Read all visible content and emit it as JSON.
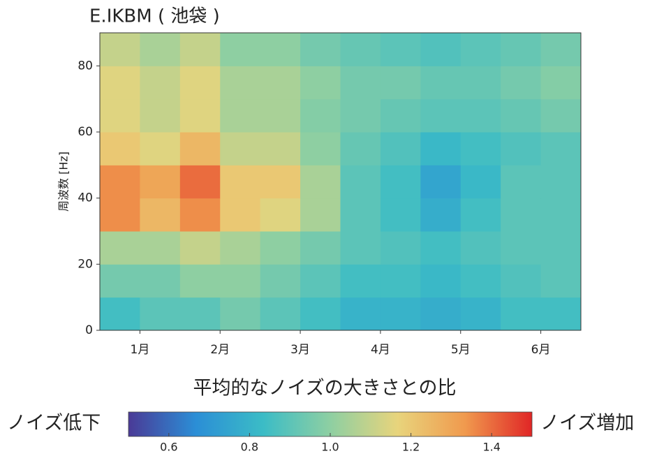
{
  "chart_data": {
    "type": "heatmap",
    "title": "E.IKBM ( 池袋 )",
    "y_label": "周波数 [Hz]",
    "xlim": [
      0,
      6
    ],
    "xticks": [
      {
        "value": 0.5,
        "label": "1月"
      },
      {
        "value": 1.5,
        "label": "2月"
      },
      {
        "value": 2.5,
        "label": "3月"
      },
      {
        "value": 3.5,
        "label": "4月"
      },
      {
        "value": 4.5,
        "label": "5月"
      },
      {
        "value": 5.5,
        "label": "6月"
      }
    ],
    "ylim": [
      0,
      90
    ],
    "yticks": [
      0,
      20,
      40,
      60,
      80
    ],
    "x_bins": [
      0,
      0.5,
      1,
      1.5,
      2,
      2.5,
      3,
      3.5,
      4,
      4.5,
      5,
      5.5,
      6
    ],
    "y_bins": [
      0,
      10,
      20,
      30,
      40,
      50,
      60,
      70,
      80,
      90
    ],
    "values": [
      [
        0.85,
        0.9,
        0.9,
        0.95,
        0.9,
        0.85,
        0.8,
        0.8,
        0.78,
        0.8,
        0.85,
        0.85
      ],
      [
        0.95,
        0.95,
        1.0,
        1.0,
        0.95,
        0.9,
        0.85,
        0.85,
        0.82,
        0.85,
        0.88,
        0.9
      ],
      [
        1.05,
        1.05,
        1.1,
        1.05,
        1.0,
        0.95,
        0.9,
        0.88,
        0.85,
        0.88,
        0.9,
        0.9
      ],
      [
        1.35,
        1.25,
        1.35,
        1.2,
        1.15,
        1.05,
        0.9,
        0.85,
        0.78,
        0.85,
        0.9,
        0.9
      ],
      [
        1.35,
        1.3,
        1.4,
        1.2,
        1.2,
        1.05,
        0.9,
        0.85,
        0.75,
        0.82,
        0.9,
        0.9
      ],
      [
        1.2,
        1.15,
        1.25,
        1.1,
        1.1,
        1.0,
        0.92,
        0.88,
        0.82,
        0.85,
        0.88,
        0.9
      ],
      [
        1.15,
        1.1,
        1.15,
        1.05,
        1.05,
        0.98,
        0.95,
        0.92,
        0.9,
        0.9,
        0.92,
        0.95
      ],
      [
        1.15,
        1.1,
        1.15,
        1.05,
        1.05,
        1.0,
        0.95,
        0.95,
        0.92,
        0.92,
        0.95,
        0.98
      ],
      [
        1.1,
        1.05,
        1.1,
        1.0,
        1.0,
        0.95,
        0.92,
        0.9,
        0.88,
        0.9,
        0.92,
        0.95
      ]
    ],
    "colormap": [
      "#4a3a96",
      "#2b8ed6",
      "#3bbcc6",
      "#8ecfa2",
      "#e8d47c",
      "#f09a4e",
      "#e02626"
    ],
    "colorbar": {
      "title": "平均的なノイズの大きさとの比",
      "low_label": "ノイズ低下",
      "high_label": "ノイズ増加",
      "clim": [
        0.5,
        1.5
      ],
      "ticks": [
        0.6,
        0.8,
        {
          "value": 1.0,
          "label": "1.0"
        },
        1.2,
        1.4
      ]
    }
  }
}
